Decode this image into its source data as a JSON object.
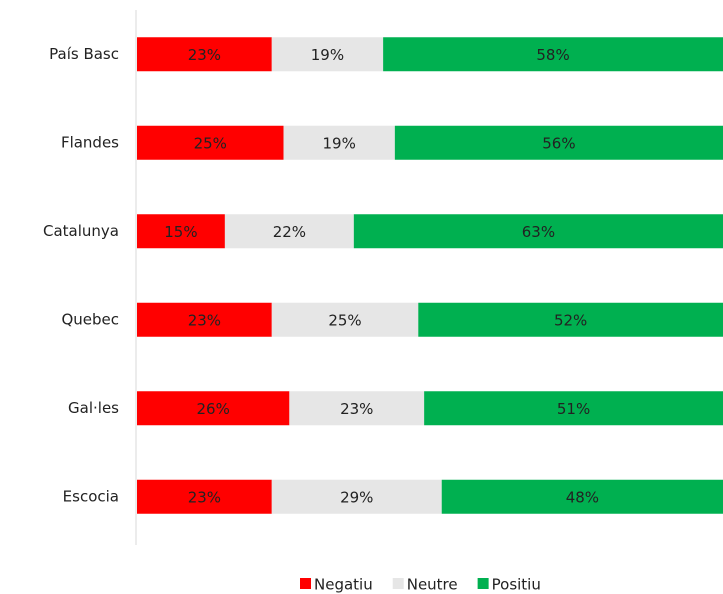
{
  "chart_data": {
    "type": "stacked-bar-horizontal",
    "categories": [
      "País Basc",
      "Flandes",
      "Catalunya",
      "Quebec",
      "Gal·les",
      "Escocia"
    ],
    "series": [
      {
        "name": "Negatiu",
        "color": "#ff0000",
        "values": [
          23,
          25,
          15,
          23,
          26,
          23
        ],
        "value_labels": [
          "23%",
          "25%",
          "15%",
          "23%",
          "26%",
          "23%"
        ]
      },
      {
        "name": "Neutre",
        "color": "#e6e6e6",
        "values": [
          19,
          19,
          22,
          25,
          23,
          29
        ],
        "value_labels": [
          "19%",
          "19%",
          "22%",
          "25%",
          "23%",
          "29%"
        ]
      },
      {
        "name": "Positiu",
        "color": "#00b050",
        "values": [
          58,
          56,
          63,
          52,
          51,
          48
        ],
        "value_labels": [
          "58%",
          "56%",
          "63%",
          "52%",
          "51%",
          "48%"
        ]
      }
    ],
    "xlim": [
      0,
      100
    ],
    "legend": "bottom"
  }
}
